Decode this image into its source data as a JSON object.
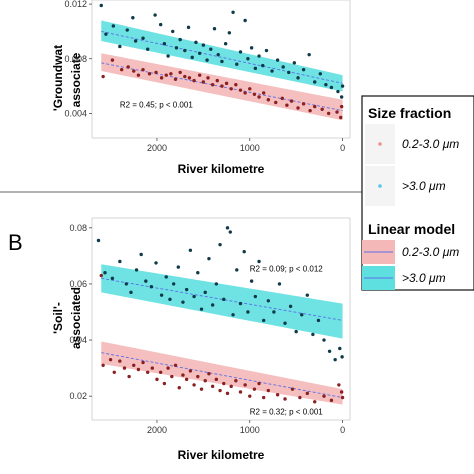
{
  "colors": {
    "small_fraction": "#f0a0a0",
    "large_fraction": "#55dede",
    "fit_line": "#5b6ee8",
    "point": "#111111"
  },
  "legend": {
    "size_title": "Size fraction",
    "linear_title": "Linear model",
    "entries": [
      "0.2-3.0 μm",
      ">3.0 μm"
    ]
  },
  "chart_data": [
    {
      "type": "scatter",
      "panel_label": "",
      "title": "",
      "xlabel": "River kilometre",
      "ylabel_lines": [
        "'Groundwat",
        "associate"
      ],
      "xlim": [
        2700,
        -80
      ],
      "ylim": [
        0.0022,
        0.0123
      ],
      "xticks": [
        2000,
        1000,
        0
      ],
      "yticks": [
        0.004,
        0.008,
        0.012
      ],
      "ytick_labels": [
        "0.004",
        "0.008",
        "0.012"
      ],
      "annotations": [
        {
          "text": "R2 = 0.45; p < 0.001",
          "x": 2400,
          "y": 0.00445
        }
      ],
      "series": [
        {
          "name": "0.2-3.0 μm",
          "color_key": "small_fraction",
          "fit": {
            "x": [
              2600,
              0
            ],
            "y": [
              0.0077,
              0.0042
            ]
          },
          "band": {
            "x": [
              2600,
              0
            ],
            "lower": [
              0.0071,
              0.0035
            ],
            "upper": [
              0.0084,
              0.005
            ]
          },
          "points": [
            [
              2580,
              0.0067
            ],
            [
              2480,
              0.0079
            ],
            [
              2380,
              0.0072
            ],
            [
              2310,
              0.0074
            ],
            [
              2250,
              0.0071
            ],
            [
              2200,
              0.0068
            ],
            [
              2150,
              0.0072
            ],
            [
              2080,
              0.0069
            ],
            [
              2010,
              0.007
            ],
            [
              1950,
              0.0066
            ],
            [
              1900,
              0.0068
            ],
            [
              1850,
              0.0069
            ],
            [
              1800,
              0.0065
            ],
            [
              1750,
              0.007
            ],
            [
              1700,
              0.0067
            ],
            [
              1650,
              0.0066
            ],
            [
              1600,
              0.0064
            ],
            [
              1540,
              0.0068
            ],
            [
              1500,
              0.0063
            ],
            [
              1450,
              0.0066
            ],
            [
              1400,
              0.0061
            ],
            [
              1350,
              0.0064
            ],
            [
              1300,
              0.006
            ],
            [
              1250,
              0.0062
            ],
            [
              1200,
              0.0058
            ],
            [
              1150,
              0.0061
            ],
            [
              1100,
              0.0057
            ],
            [
              1050,
              0.0055
            ],
            [
              1000,
              0.0058
            ],
            [
              950,
              0.0054
            ],
            [
              900,
              0.0052
            ],
            [
              850,
              0.0055
            ],
            [
              800,
              0.005
            ],
            [
              720,
              0.0048
            ],
            [
              650,
              0.0051
            ],
            [
              600,
              0.0046
            ],
            [
              550,
              0.0049
            ],
            [
              480,
              0.0044
            ],
            [
              420,
              0.0047
            ],
            [
              350,
              0.0042
            ],
            [
              300,
              0.0045
            ],
            [
              220,
              0.0043
            ],
            [
              150,
              0.004
            ],
            [
              60,
              0.0041
            ],
            [
              20,
              0.0037
            ],
            [
              10,
              0.0045
            ]
          ]
        },
        {
          "name": ">3.0 μm",
          "color_key": "large_fraction",
          "fit": {
            "x": [
              2600,
              0
            ],
            "y": [
              0.01,
              0.0062
            ]
          },
          "band": {
            "x": [
              2600,
              0
            ],
            "lower": [
              0.0093,
              0.0056
            ],
            "upper": [
              0.0108,
              0.0068
            ]
          },
          "points": [
            [
              2600,
              0.0119
            ],
            [
              2550,
              0.0098
            ],
            [
              2470,
              0.0104
            ],
            [
              2400,
              0.0089
            ],
            [
              2320,
              0.0101
            ],
            [
              2260,
              0.011
            ],
            [
              2230,
              0.0093
            ],
            [
              2150,
              0.0095
            ],
            [
              2100,
              0.0087
            ],
            [
              2020,
              0.0112
            ],
            [
              1960,
              0.0105
            ],
            [
              1920,
              0.0091
            ],
            [
              1880,
              0.0082
            ],
            [
              1830,
              0.01
            ],
            [
              1790,
              0.0088
            ],
            [
              1750,
              0.0094
            ],
            [
              1700,
              0.0086
            ],
            [
              1660,
              0.0103
            ],
            [
              1620,
              0.0081
            ],
            [
              1580,
              0.0092
            ],
            [
              1540,
              0.0084
            ],
            [
              1500,
              0.009
            ],
            [
              1460,
              0.0079
            ],
            [
              1420,
              0.0087
            ],
            [
              1380,
              0.0102
            ],
            [
              1340,
              0.0083
            ],
            [
              1300,
              0.0078
            ],
            [
              1260,
              0.0091
            ],
            [
              1220,
              0.0099
            ],
            [
              1180,
              0.0114
            ],
            [
              1140,
              0.0076
            ],
            [
              1100,
              0.0085
            ],
            [
              1050,
              0.0108
            ],
            [
              1020,
              0.008
            ],
            [
              980,
              0.0088
            ],
            [
              940,
              0.0073
            ],
            [
              900,
              0.0082
            ],
            [
              860,
              0.0075
            ],
            [
              820,
              0.0086
            ],
            [
              760,
              0.0071
            ],
            [
              700,
              0.0079
            ],
            [
              640,
              0.0074
            ],
            [
              580,
              0.007
            ],
            [
              520,
              0.0077
            ],
            [
              480,
              0.0066
            ],
            [
              420,
              0.0072
            ],
            [
              360,
              0.0083
            ],
            [
              300,
              0.0063
            ],
            [
              240,
              0.0069
            ],
            [
              180,
              0.0061
            ],
            [
              120,
              0.0059
            ],
            [
              50,
              0.0056
            ],
            [
              0,
              0.006
            ],
            [
              10,
              0.0052
            ]
          ]
        }
      ]
    },
    {
      "type": "scatter",
      "panel_label": "B",
      "title": "",
      "xlabel": "River kilometre",
      "ylabel_lines": [
        "'Soil'-",
        "associated"
      ],
      "xlim": [
        2700,
        -80
      ],
      "ylim": [
        0.0115,
        0.0835
      ],
      "xticks": [
        2000,
        1000,
        0
      ],
      "yticks": [
        0.02,
        0.04,
        0.06,
        0.08
      ],
      "ytick_labels": [
        "0.02",
        "0.04",
        "0.06",
        "0.08"
      ],
      "annotations": [
        {
          "text": "R2 = 0.09; p < 0.012",
          "x": 1000,
          "y": 0.0645
        },
        {
          "text": "R2 = 0.32; p < 0.001",
          "x": 1000,
          "y": 0.0135
        }
      ],
      "series": [
        {
          "name": "0.2-3.0 μm",
          "color_key": "small_fraction",
          "fit": {
            "x": [
              2600,
              0
            ],
            "y": [
              0.0355,
              0.0195
            ]
          },
          "band": {
            "x": [
              2600,
              0
            ],
            "lower": [
              0.0315,
              0.017
            ],
            "upper": [
              0.0395,
              0.0225
            ]
          },
          "points": [
            [
              2600,
              0.063
            ],
            [
              2580,
              0.031
            ],
            [
              2500,
              0.033
            ],
            [
              2460,
              0.0285
            ],
            [
              2400,
              0.0325
            ],
            [
              2350,
              0.03
            ],
            [
              2300,
              0.027
            ],
            [
              2250,
              0.031
            ],
            [
              2200,
              0.0295
            ],
            [
              2150,
              0.032
            ],
            [
              2100,
              0.0285
            ],
            [
              2050,
              0.03
            ],
            [
              2000,
              0.026
            ],
            [
              1960,
              0.0285
            ],
            [
              1920,
              0.0245
            ],
            [
              1880,
              0.03
            ],
            [
              1840,
              0.027
            ],
            [
              1800,
              0.031
            ],
            [
              1760,
              0.023
            ],
            [
              1720,
              0.0275
            ],
            [
              1680,
              0.026
            ],
            [
              1640,
              0.029
            ],
            [
              1600,
              0.024
            ],
            [
              1560,
              0.027
            ],
            [
              1520,
              0.0225
            ],
            [
              1480,
              0.0255
            ],
            [
              1440,
              0.028
            ],
            [
              1400,
              0.0235
            ],
            [
              1360,
              0.026
            ],
            [
              1320,
              0.022
            ],
            [
              1280,
              0.0245
            ],
            [
              1240,
              0.021
            ],
            [
              1200,
              0.0235
            ],
            [
              1150,
              0.0255
            ],
            [
              1100,
              0.0215
            ],
            [
              1050,
              0.024
            ],
            [
              1000,
              0.02
            ],
            [
              950,
              0.0225
            ],
            [
              900,
              0.0245
            ],
            [
              850,
              0.0195
            ],
            [
              800,
              0.022
            ],
            [
              700,
              0.0205
            ],
            [
              620,
              0.019
            ],
            [
              540,
              0.0225
            ],
            [
              460,
              0.0195
            ],
            [
              380,
              0.021
            ],
            [
              300,
              0.018
            ],
            [
              200,
              0.02
            ],
            [
              120,
              0.0185
            ],
            [
              40,
              0.024
            ],
            [
              10,
              0.0215
            ],
            [
              0,
              0.0195
            ]
          ]
        },
        {
          "name": ">3.0 μm",
          "color_key": "large_fraction",
          "fit": {
            "x": [
              2600,
              0
            ],
            "y": [
              0.062,
              0.047
            ]
          },
          "band": {
            "x": [
              2600,
              0
            ],
            "lower": [
              0.057,
              0.0405
            ],
            "upper": [
              0.067,
              0.053
            ]
          },
          "points": [
            [
              2630,
              0.0755
            ],
            [
              2560,
              0.064
            ],
            [
              2480,
              0.062
            ],
            [
              2400,
              0.068
            ],
            [
              2330,
              0.06
            ],
            [
              2280,
              0.057
            ],
            [
              2220,
              0.065
            ],
            [
              2170,
              0.0705
            ],
            [
              2120,
              0.061
            ],
            [
              2060,
              0.059
            ],
            [
              2010,
              0.0675
            ],
            [
              1950,
              0.056
            ],
            [
              1900,
              0.0625
            ],
            [
              1860,
              0.0545
            ],
            [
              1820,
              0.06
            ],
            [
              1770,
              0.066
            ],
            [
              1720,
              0.0535
            ],
            [
              1680,
              0.058
            ],
            [
              1640,
              0.072
            ],
            [
              1600,
              0.0555
            ],
            [
              1560,
              0.064
            ],
            [
              1520,
              0.051
            ],
            [
              1480,
              0.057
            ],
            [
              1440,
              0.069
            ],
            [
              1400,
              0.0525
            ],
            [
              1360,
              0.06
            ],
            [
              1320,
              0.074
            ],
            [
              1280,
              0.0545
            ],
            [
              1240,
              0.08
            ],
            [
              1210,
              0.0785
            ],
            [
              1180,
              0.049
            ],
            [
              1140,
              0.065
            ],
            [
              1100,
              0.053
            ],
            [
              1060,
              0.0715
            ],
            [
              1020,
              0.05
            ],
            [
              980,
              0.061
            ],
            [
              940,
              0.0555
            ],
            [
              900,
              0.068
            ],
            [
              850,
              0.047
            ],
            [
              800,
              0.054
            ],
            [
              740,
              0.05
            ],
            [
              680,
              0.06
            ],
            [
              620,
              0.046
            ],
            [
              560,
              0.052
            ],
            [
              500,
              0.043
            ],
            [
              440,
              0.049
            ],
            [
              380,
              0.056
            ],
            [
              320,
              0.042
            ],
            [
              260,
              0.047
            ],
            [
              200,
              0.04
            ],
            [
              140,
              0.036
            ],
            [
              80,
              0.033
            ],
            [
              30,
              0.037
            ],
            [
              5,
              0.034
            ]
          ]
        }
      ]
    }
  ]
}
